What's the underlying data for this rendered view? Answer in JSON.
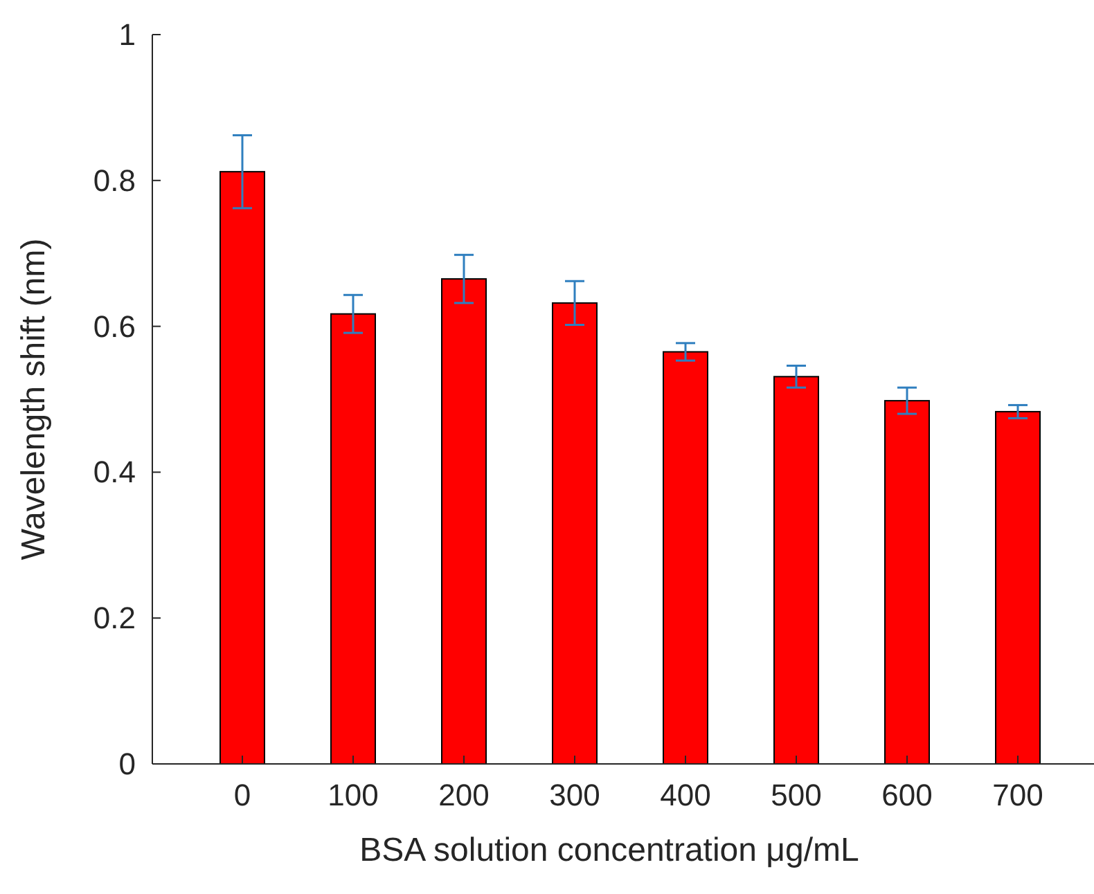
{
  "chart_data": {
    "type": "bar",
    "xlabel": "BSA solution concentration μg/mL",
    "ylabel": "Wavelength shift (nm)",
    "categories": [
      "0",
      "100",
      "200",
      "300",
      "400",
      "500",
      "600",
      "700"
    ],
    "values": [
      0.812,
      0.617,
      0.665,
      0.632,
      0.565,
      0.531,
      0.498,
      0.483
    ],
    "errors": [
      0.05,
      0.026,
      0.033,
      0.03,
      0.012,
      0.015,
      0.018,
      0.009
    ],
    "color": "#ff0000",
    "ylim": [
      0,
      1
    ],
    "yticks": [
      0,
      0.2,
      0.4,
      0.6,
      0.8,
      1
    ],
    "grid": false
  }
}
